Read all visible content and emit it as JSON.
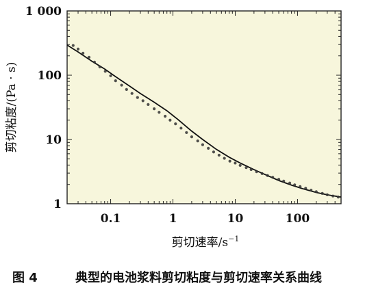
{
  "chart_data": {
    "type": "scatter",
    "xscale": "log",
    "yscale": "log",
    "xlim": [
      0.02,
      500
    ],
    "ylim": [
      1,
      1000
    ],
    "xlabel_main": "剪切速率/s",
    "xlabel_exp": "−1",
    "ylabel": "剪切粘度/(Pa · s)",
    "x_tick_labels": [
      {
        "value": 0.1,
        "label": "0.1"
      },
      {
        "value": 1,
        "label": "1"
      },
      {
        "value": 10,
        "label": "10"
      },
      {
        "value": 100,
        "label": "100"
      }
    ],
    "y_tick_labels": [
      {
        "value": 1,
        "label": "1"
      },
      {
        "value": 10,
        "label": "10"
      },
      {
        "value": 100,
        "label": "100"
      },
      {
        "value": 1000,
        "label": "1 000"
      }
    ],
    "grid": false,
    "plot_background": "#f7f6dc",
    "line_color": "#111111",
    "marker_color": "#333333",
    "series": [
      {
        "kind": "points",
        "x": [
          0.025,
          0.03,
          0.036,
          0.045,
          0.055,
          0.067,
          0.082,
          0.1,
          0.12,
          0.15,
          0.18,
          0.22,
          0.27,
          0.33,
          0.4,
          0.5,
          0.6,
          0.75,
          0.9,
          1.1,
          1.35,
          1.65,
          2.0,
          2.5,
          3.0,
          3.7,
          4.5,
          5.5,
          6.7,
          8.2,
          10,
          12,
          15,
          18,
          22,
          27,
          33,
          40,
          50,
          60,
          75,
          90,
          110,
          135,
          165,
          200,
          250,
          300,
          370,
          450
        ],
        "y": [
          290,
          255,
          220,
          190,
          160,
          135,
          115,
          98,
          82,
          70,
          60,
          52,
          45,
          40,
          35,
          30,
          26.5,
          23,
          20,
          17.5,
          15,
          12.8,
          11,
          9.5,
          8.3,
          7.3,
          6.4,
          5.7,
          5.1,
          4.6,
          4.3,
          3.95,
          3.65,
          3.4,
          3.15,
          2.95,
          2.75,
          2.58,
          2.4,
          2.25,
          2.1,
          1.97,
          1.85,
          1.74,
          1.63,
          1.54,
          1.45,
          1.38,
          1.32,
          1.27
        ]
      },
      {
        "kind": "fit_line",
        "x": [
          0.02,
          0.03,
          0.05,
          0.08,
          0.12,
          0.2,
          0.3,
          0.5,
          0.8,
          1.2,
          2,
          3,
          5,
          8,
          12,
          20,
          30,
          50,
          80,
          120,
          200,
          300,
          500
        ],
        "y": [
          295,
          230,
          165,
          125,
          95,
          68,
          52,
          38,
          28,
          20.5,
          13.5,
          10,
          7,
          5.3,
          4.3,
          3.4,
          2.85,
          2.3,
          1.95,
          1.72,
          1.5,
          1.38,
          1.27
        ]
      }
    ]
  },
  "caption": {
    "label": "图 4",
    "text": "典型的电池浆料剪切粘度与剪切速率关系曲线"
  }
}
